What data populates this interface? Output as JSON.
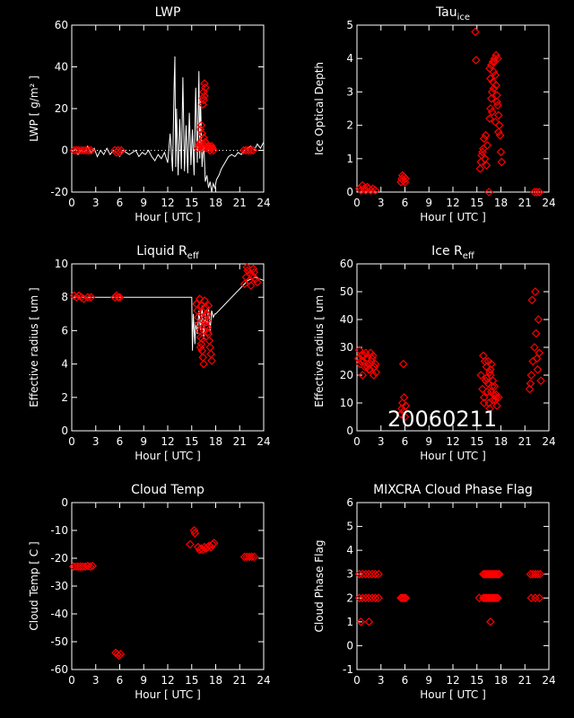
{
  "date_stamp": "20060211",
  "colors": {
    "background": "#000000",
    "axes": "#ffffff",
    "markers": "#ff0000",
    "trace": "#ffffff"
  },
  "chart_data": [
    {
      "id": "lwp",
      "type": "scatter",
      "title": "LWP",
      "title_sub": "",
      "xlabel": "Hour [ UTC ]",
      "ylabel": "LWP [ g/m² ]",
      "xlim": [
        0,
        24
      ],
      "ylim": [
        -20,
        60
      ],
      "xticks": [
        0,
        3,
        6,
        9,
        12,
        15,
        18,
        21,
        24
      ],
      "yticks": [
        -20,
        0,
        20,
        40,
        60
      ],
      "reference_line": 0,
      "trace": {
        "x": [
          0,
          0.4,
          0.8,
          1.2,
          1.6,
          2.0,
          2.4,
          2.8,
          3.2,
          3.6,
          4.0,
          4.4,
          4.8,
          5.2,
          5.6,
          6.0,
          6.4,
          6.8,
          7.2,
          7.6,
          8.0,
          8.4,
          8.8,
          9.2,
          9.6,
          10.0,
          10.4,
          10.8,
          11.2,
          11.6,
          12.0,
          12.3,
          12.6,
          12.8,
          12.9,
          13.0,
          13.1,
          13.3,
          13.5,
          13.7,
          13.9,
          14.1,
          14.3,
          14.5,
          14.7,
          14.9,
          15.1,
          15.3,
          15.5,
          15.7,
          15.9,
          16.0,
          16.1,
          16.3,
          16.5,
          16.7,
          16.9,
          17.1,
          17.3,
          17.5,
          17.7,
          17.9,
          18.1,
          18.4,
          18.7,
          19.0,
          19.3,
          19.6,
          20.0,
          20.4,
          20.8,
          21.2,
          21.6,
          22.0,
          22.4,
          22.8,
          23.2,
          23.6,
          24.0
        ],
        "y": [
          -1,
          1,
          -2,
          0,
          -1,
          2,
          -1,
          1,
          -3,
          0,
          -2,
          1,
          -2,
          0,
          -1,
          -3,
          0,
          -1,
          -2,
          -1,
          0,
          -3,
          -1,
          -2,
          0,
          -3,
          -5,
          -2,
          -4,
          -1,
          -6,
          8,
          -10,
          30,
          45,
          -8,
          20,
          -12,
          15,
          -9,
          35,
          -10,
          12,
          -11,
          18,
          -7,
          10,
          -12,
          30,
          -6,
          38,
          -4,
          25,
          -8,
          5,
          -15,
          -12,
          -18,
          -15,
          -20,
          -16,
          -18,
          -14,
          -12,
          -9,
          -7,
          -5,
          -3,
          -2,
          -3,
          -1,
          -2,
          0,
          1,
          2,
          0,
          3,
          1,
          4
        ]
      },
      "points": {
        "x": [
          0.3,
          0.6,
          0.9,
          1.2,
          1.5,
          1.8,
          2.1,
          2.4,
          5.4,
          5.6,
          5.8,
          6.0,
          6.2,
          15.8,
          15.9,
          16.0,
          16.1,
          16.2,
          16.3,
          16.4,
          16.5,
          16.6,
          16.7,
          16.8,
          16.9,
          17.0,
          17.1,
          17.2,
          17.3,
          17.4,
          17.5,
          17.6,
          17.7,
          16.1,
          16.2,
          16.3,
          16.4,
          16.5,
          16.6,
          16.7,
          16.4,
          16.5,
          16.6,
          21.5,
          21.8,
          22.1,
          22.4,
          22.7
        ],
        "y": [
          0,
          0,
          0,
          0,
          0,
          0,
          0,
          0,
          0,
          -1,
          0,
          -1,
          0,
          1,
          2,
          3,
          4,
          2,
          1,
          3,
          6,
          2,
          4,
          1,
          3,
          2,
          1,
          2,
          0,
          1,
          2,
          1,
          0,
          10,
          12,
          8,
          25,
          28,
          32,
          30,
          22,
          24,
          26,
          0,
          0,
          0,
          0,
          0
        ]
      }
    },
    {
      "id": "tau_ice",
      "type": "scatter",
      "title": "Tau",
      "title_sub": "ice",
      "xlabel": "Hour [ UTC ]",
      "ylabel": "Ice Optical Depth",
      "xlim": [
        0,
        24
      ],
      "ylim": [
        0,
        5
      ],
      "xticks": [
        0,
        3,
        6,
        9,
        12,
        15,
        18,
        21,
        24
      ],
      "yticks": [
        0,
        1,
        2,
        3,
        4,
        5
      ],
      "points": {
        "x": [
          0.3,
          0.5,
          0.7,
          0.9,
          1.1,
          1.3,
          1.5,
          1.7,
          2.0,
          2.3,
          5.5,
          5.6,
          5.7,
          5.8,
          5.9,
          6.0,
          6.1,
          14.8,
          14.9,
          15.4,
          15.5,
          15.6,
          15.7,
          15.8,
          15.9,
          16.0,
          16.1,
          16.2,
          16.3,
          16.5,
          16.6,
          16.7,
          16.8,
          16.9,
          17.0,
          17.1,
          17.2,
          17.3,
          17.4,
          17.5,
          17.6,
          17.7,
          17.8,
          17.9,
          18.0,
          18.1,
          16.6,
          16.8,
          17.0,
          17.2,
          17.4,
          17.6,
          16.7,
          17.1,
          17.5,
          16.9,
          17.3,
          17.7,
          22.2,
          22.5,
          22.8
        ],
        "y": [
          0.1,
          0.05,
          0.2,
          0.1,
          0.05,
          0.15,
          0.1,
          0.05,
          0.1,
          0.05,
          0.3,
          0.4,
          0.5,
          0.35,
          0.45,
          0.3,
          0.4,
          4.8,
          3.95,
          0.7,
          0.9,
          1.1,
          1.2,
          1.3,
          1.6,
          1.0,
          1.7,
          0.8,
          1.4,
          0.0,
          2.2,
          2.5,
          2.8,
          3.0,
          3.3,
          3.6,
          3.9,
          3.5,
          3.2,
          2.9,
          2.6,
          2.3,
          2.0,
          1.7,
          1.2,
          0.9,
          3.7,
          3.8,
          3.9,
          4.0,
          4.1,
          4.0,
          3.4,
          3.1,
          2.7,
          2.4,
          2.1,
          1.8,
          0.0,
          0.0,
          0.0
        ]
      }
    },
    {
      "id": "liquid_reff",
      "type": "scatter",
      "title": "Liquid R",
      "title_sub": "eff",
      "xlabel": "Hour [ UTC ]",
      "ylabel": "Effective radius [ um ]",
      "xlim": [
        0,
        24
      ],
      "ylim": [
        0,
        10
      ],
      "xticks": [
        0,
        3,
        6,
        9,
        12,
        15,
        18,
        21,
        24
      ],
      "yticks": [
        0,
        2,
        4,
        6,
        8,
        10
      ],
      "trace": {
        "x": [
          0,
          1,
          2,
          3,
          4,
          5,
          6,
          7,
          8,
          9,
          10,
          11,
          12,
          13,
          14,
          15,
          15.05,
          15.1,
          15.2,
          15.4,
          15.5,
          15.7,
          15.9,
          16.1,
          16.3,
          16.5,
          16.7,
          16.9,
          17.1,
          17.3,
          17.5,
          17.7,
          17.9,
          18.0,
          19.0,
          20.0,
          21.0,
          22.0,
          23.0,
          24.0
        ],
        "y": [
          8,
          8,
          8,
          8,
          8,
          8,
          8,
          8,
          8,
          8,
          8,
          8,
          8,
          8,
          8,
          8,
          6,
          4.8,
          7,
          5.2,
          6.5,
          5.8,
          7.2,
          6.0,
          7.5,
          5.5,
          7.0,
          6.3,
          7.4,
          6.0,
          7.2,
          6.8,
          7.0,
          7.0,
          7.5,
          8.0,
          8.5,
          9.0,
          9.2,
          9.0
        ]
      },
      "points": {
        "x": [
          0.3,
          0.6,
          0.9,
          1.2,
          1.5,
          2.0,
          2.4,
          5.4,
          5.6,
          5.8,
          6.0,
          15.6,
          15.7,
          15.8,
          15.9,
          16.0,
          16.1,
          16.2,
          16.3,
          16.4,
          16.5,
          16.6,
          16.7,
          16.8,
          16.9,
          17.0,
          17.1,
          17.2,
          17.3,
          17.4,
          17.5,
          16.0,
          16.2,
          16.4,
          16.6,
          16.8,
          17.0,
          16.1,
          16.3,
          16.5,
          16.7,
          16.9,
          17.1,
          21.6,
          21.8,
          22.0,
          22.2,
          22.4,
          22.6,
          22.8,
          23.0,
          23.2,
          21.9,
          22.3,
          22.7
        ],
        "y": [
          8.1,
          8.0,
          8.1,
          8.0,
          7.9,
          8.0,
          8.0,
          8.0,
          8.1,
          8.0,
          8.0,
          7.6,
          7.2,
          6.8,
          6.4,
          6.0,
          5.6,
          5.2,
          4.8,
          4.4,
          4.0,
          7.8,
          7.4,
          7.0,
          6.6,
          6.2,
          5.8,
          5.4,
          5.0,
          4.6,
          4.2,
          7.9,
          7.5,
          7.1,
          6.7,
          6.3,
          5.9,
          5.0,
          5.5,
          6.0,
          6.5,
          7.0,
          7.5,
          8.8,
          9.2,
          9.6,
          9.0,
          8.7,
          9.3,
          9.5,
          9.1,
          8.9,
          9.8,
          9.4,
          9.7
        ]
      }
    },
    {
      "id": "ice_reff",
      "type": "scatter",
      "title": "Ice R",
      "title_sub": "eff",
      "xlabel": "Hour [ UTC ]",
      "ylabel": "Effective radius [ um ]",
      "xlim": [
        0,
        24
      ],
      "ylim": [
        0,
        60
      ],
      "xticks": [
        0,
        3,
        6,
        9,
        12,
        15,
        18,
        21,
        24
      ],
      "yticks": [
        0,
        10,
        20,
        30,
        40,
        50,
        60
      ],
      "points": {
        "x": [
          0.2,
          0.4,
          0.6,
          0.8,
          1.0,
          1.2,
          1.4,
          1.6,
          1.8,
          2.0,
          2.2,
          2.4,
          0.3,
          0.7,
          1.1,
          1.5,
          1.9,
          2.3,
          0.5,
          0.9,
          1.3,
          1.7,
          2.1,
          5.5,
          5.6,
          5.7,
          5.8,
          5.9,
          6.0,
          6.1,
          5.8,
          15.5,
          15.7,
          15.9,
          16.1,
          16.3,
          16.5,
          16.7,
          16.9,
          17.1,
          17.3,
          17.5,
          17.7,
          16.0,
          16.2,
          16.4,
          16.6,
          16.8,
          17.0,
          17.2,
          17.4,
          15.8,
          16.2,
          16.6,
          17.0,
          17.4,
          16.4,
          16.8,
          15.9,
          16.7,
          21.6,
          21.8,
          22.0,
          22.2,
          22.4,
          22.6,
          22.8,
          23.0,
          21.9,
          22.3,
          22.7,
          21.7,
          22.5
        ],
        "y": [
          26,
          24,
          27,
          25,
          23,
          26,
          24,
          22,
          25,
          27,
          23,
          21,
          29,
          20,
          28,
          22,
          26,
          24,
          25,
          27,
          23,
          28,
          20,
          6,
          8,
          10,
          7,
          12,
          5,
          9,
          24,
          20,
          15,
          12,
          18,
          14,
          10,
          22,
          16,
          13,
          11,
          9,
          12,
          25,
          19,
          17,
          21,
          14,
          11,
          16,
          13,
          27,
          23,
          8,
          18,
          12,
          25,
          24,
          10,
          20,
          15,
          20,
          25,
          30,
          35,
          22,
          28,
          18,
          47,
          50,
          40,
          17,
          26
        ]
      }
    },
    {
      "id": "cloud_temp",
      "type": "scatter",
      "title": "Cloud Temp",
      "title_sub": "",
      "xlabel": "Hour [ UTC ]",
      "ylabel": "Cloud Temp [ C ]",
      "xlim": [
        0,
        24
      ],
      "ylim": [
        -60,
        0
      ],
      "xticks": [
        0,
        3,
        6,
        9,
        12,
        15,
        18,
        21,
        24
      ],
      "yticks": [
        -60,
        -50,
        -40,
        -30,
        -20,
        -10,
        0
      ],
      "points": {
        "x": [
          0.2,
          0.5,
          0.8,
          1.1,
          1.4,
          1.7,
          2.0,
          2.3,
          2.6,
          5.5,
          5.7,
          5.9,
          6.1,
          14.8,
          15.3,
          15.4,
          15.8,
          16.0,
          16.2,
          16.4,
          16.6,
          16.8,
          17.0,
          17.2,
          17.4,
          17.6,
          17.8,
          21.6,
          21.9,
          22.2,
          22.5,
          22.8
        ],
        "y": [
          -23,
          -23,
          -23,
          -23,
          -23,
          -23,
          -22.8,
          -23,
          -22.8,
          -54,
          -54.5,
          -55,
          -54.5,
          -15,
          -10,
          -11,
          -16,
          -17,
          -16.5,
          -17,
          -16,
          -16.5,
          -16,
          -15.5,
          -16,
          -15,
          -14.5,
          -19.5,
          -19.5,
          -19.5,
          -19.5,
          -19.5
        ]
      }
    },
    {
      "id": "phase_flag",
      "type": "scatter",
      "title": "MIXCRA Cloud Phase Flag",
      "title_sub": "",
      "xlabel": "Hour [ UTC ]",
      "ylabel": "Cloud Phase Flag",
      "xlim": [
        0,
        24
      ],
      "ylim": [
        -1,
        6
      ],
      "xticks": [
        0,
        3,
        6,
        9,
        12,
        15,
        18,
        21,
        24
      ],
      "yticks": [
        -1,
        0,
        1,
        2,
        3,
        4,
        5,
        6
      ],
      "points": {
        "x": [
          0.3,
          0.7,
          1.1,
          1.5,
          1.9,
          2.3,
          2.7,
          0.3,
          0.7,
          1.1,
          1.5,
          1.9,
          2.3,
          2.7,
          0.5,
          1.5,
          5.5,
          5.7,
          5.9,
          6.1,
          15.3,
          15.8,
          16.0,
          16.2,
          16.4,
          16.6,
          16.8,
          17.0,
          17.2,
          17.4,
          17.6,
          17.8,
          15.8,
          16.0,
          16.2,
          16.4,
          16.6,
          16.8,
          17.0,
          17.2,
          17.4,
          17.6,
          16.7,
          21.7,
          22.0,
          22.3,
          22.6,
          22.9,
          21.8,
          22.3,
          22.8
        ],
        "y": [
          3,
          3,
          3,
          3,
          3,
          3,
          3,
          2,
          2,
          2,
          2,
          2,
          2,
          2,
          1,
          1,
          2,
          2,
          2,
          2,
          2,
          3,
          3,
          3,
          3,
          3,
          3,
          3,
          3,
          3,
          3,
          3,
          2,
          2,
          2,
          2,
          2,
          2,
          2,
          2,
          2,
          2,
          1,
          3,
          3,
          3,
          3,
          3,
          2,
          2,
          2
        ]
      }
    }
  ]
}
